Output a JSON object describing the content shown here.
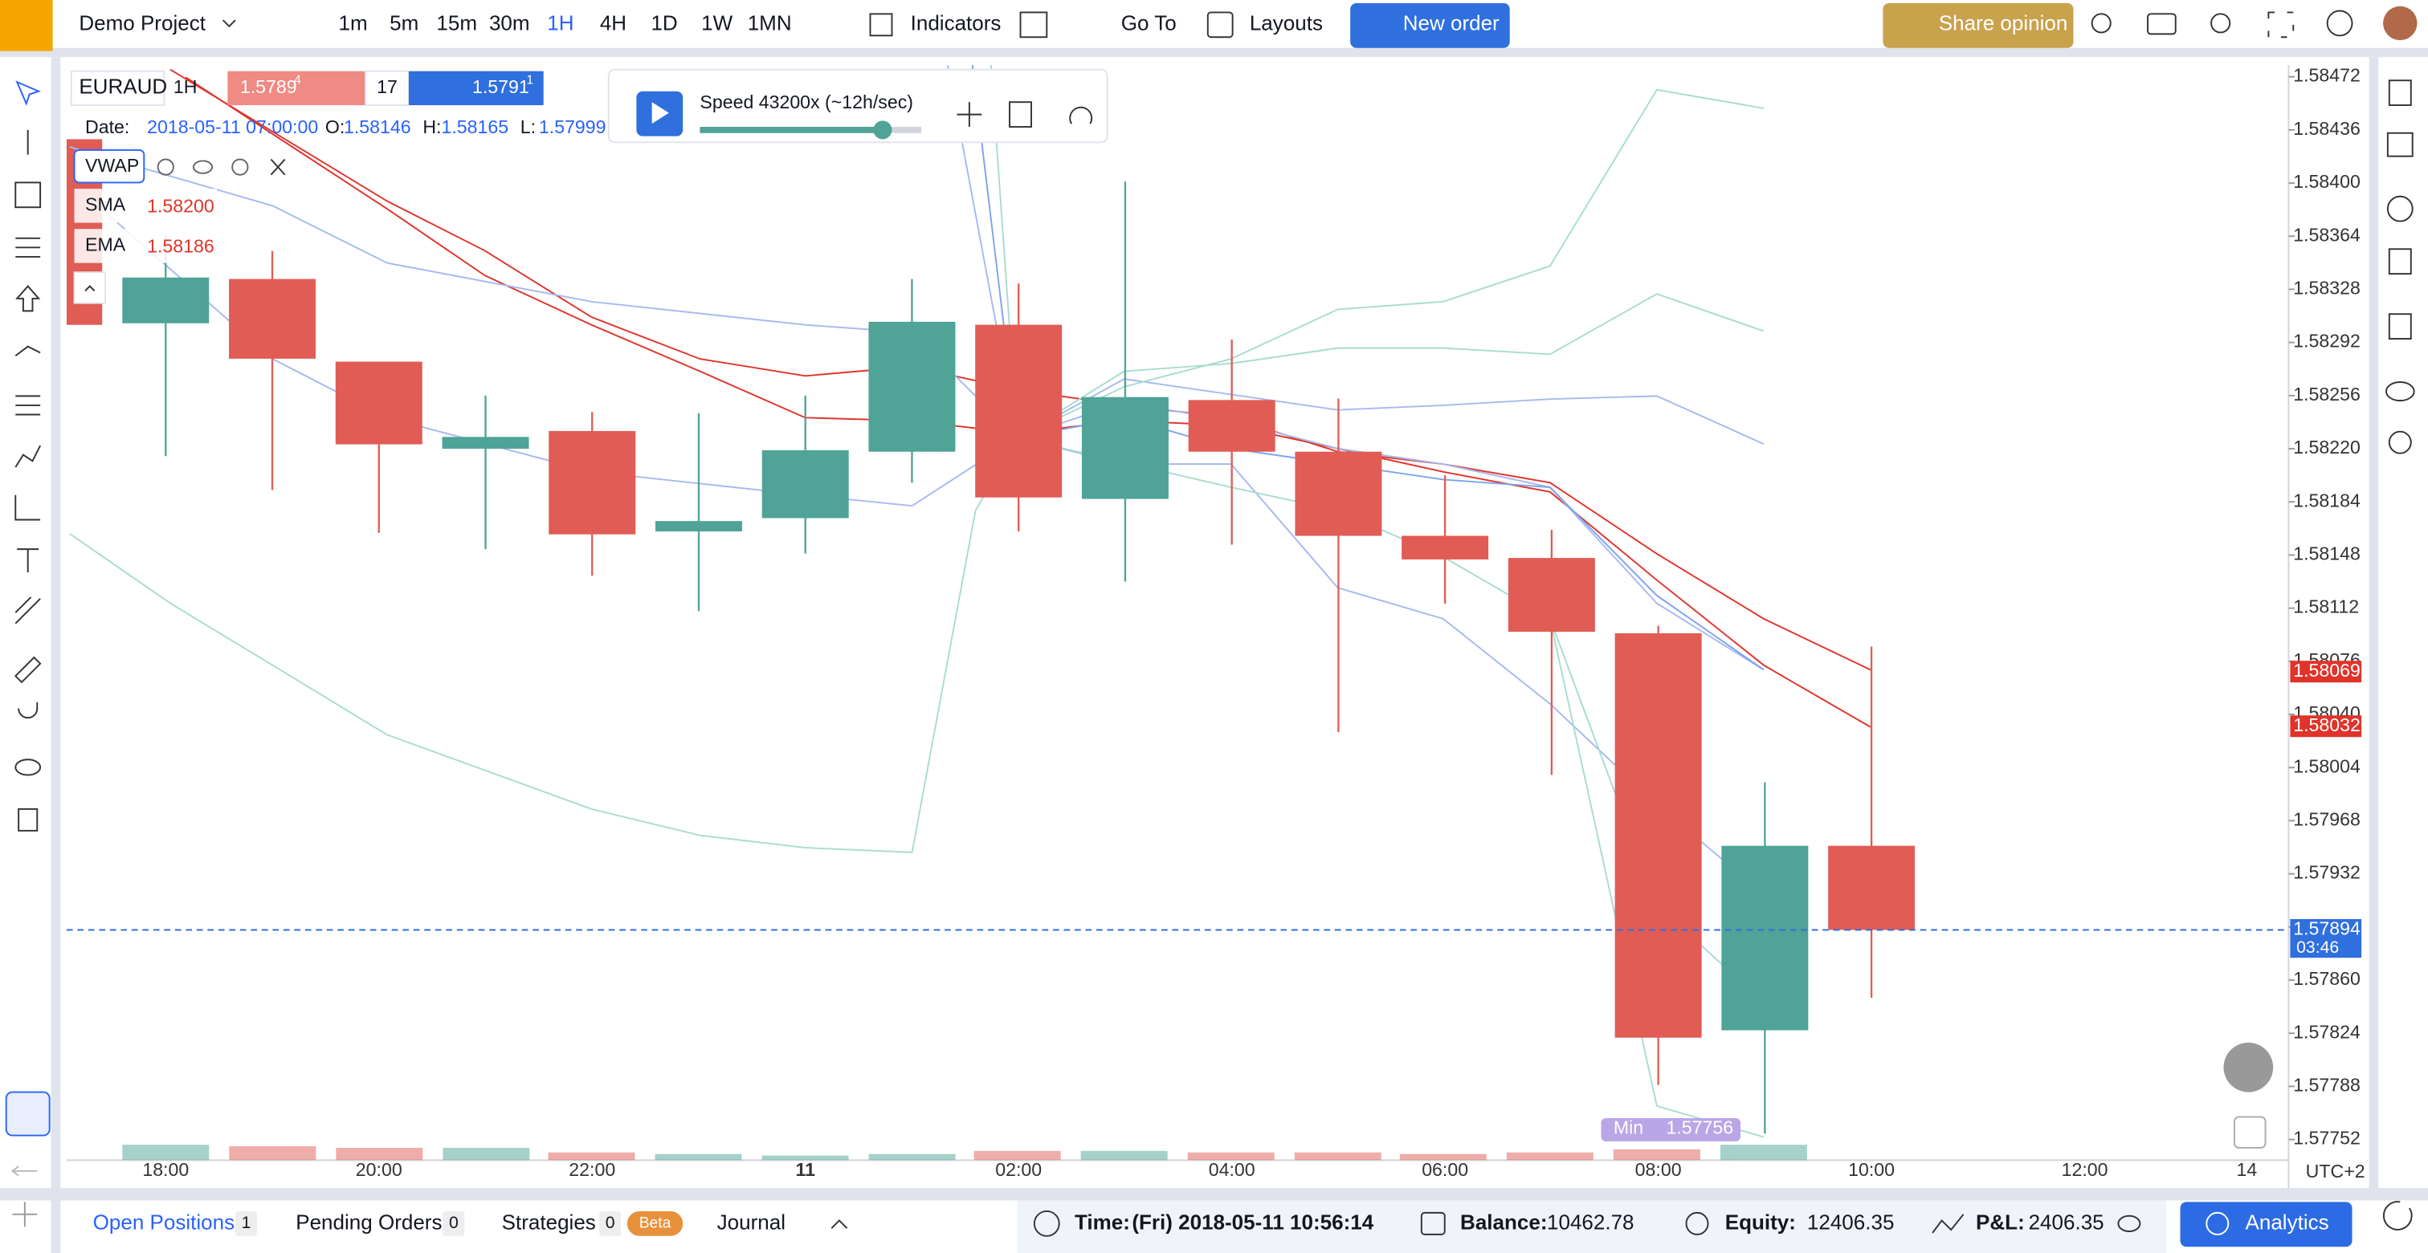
{
  "toolbar": {
    "project": "Demo Project",
    "timeframes": [
      "1m",
      "5m",
      "15m",
      "30m",
      "1H",
      "4H",
      "1D",
      "1W",
      "1MN"
    ],
    "indicators": "Indicators",
    "goto": "Go To",
    "layouts": "Layouts",
    "new_order": "New order",
    "share": "Share opinion"
  },
  "legend": {
    "symbol": "EURAUD",
    "interval": "1H",
    "sell": "1.5789",
    "sell_sup": "4",
    "spread": "17",
    "buy": "1.5791",
    "buy_sup": "1",
    "date_label": "Date:",
    "date": "2018-05-11 07:00:00",
    "o_label": "O:",
    "o": "1.58146",
    "h_label": "H:",
    "h": "1.58165",
    "l_label": "L:",
    "l": "1.57999",
    "vwap": "VWAP",
    "sma": "SMA",
    "sma_value": "1.58200",
    "ema": "EMA",
    "ema_value": "1.58186"
  },
  "replay": {
    "speed": "Speed 43200x (~12h/sec)"
  },
  "chart": {
    "ylim": [
      1.57738,
      1.5848
    ],
    "yticks": [
      1.58472,
      1.58436,
      {
        "value": 1.584,
        "label": "1.58400"
      },
      1.58364,
      1.58328,
      1.58292,
      1.58256,
      {
        "value": 1.5822,
        "label": "1.58220"
      },
      1.58184,
      1.58148,
      1.58112,
      1.58076,
      {
        "value": 1.5804,
        "label": "1.58040"
      },
      1.58004,
      1.57968,
      1.57932,
      1.57896,
      {
        "value": 1.5786,
        "label": "1.57860"
      },
      1.57824,
      1.57788,
      1.57752
    ],
    "categories": [
      "18:00",
      null,
      "20:00",
      null,
      "22:00",
      null,
      "11",
      null,
      "02:00",
      null,
      "04:00",
      null,
      "06:00",
      null,
      "08:00",
      null,
      "10:00",
      null,
      "12:00",
      null,
      "14"
    ],
    "up_color": "#4fa397",
    "down_color": "#e05c55",
    "candles": [
      {
        "open": 1.58305,
        "high": 1.58365,
        "low": 1.58215,
        "close": 1.58336
      },
      {
        "open": 1.58335,
        "high": 1.58354,
        "low": 1.58192,
        "close": 1.58281
      },
      {
        "open": 1.58279,
        "high": 1.58279,
        "low": 1.58163,
        "close": 1.58223
      },
      {
        "open": 1.5822,
        "high": 1.58256,
        "low": 1.58152,
        "close": 1.58228
      },
      {
        "open": 1.58232,
        "high": 1.58245,
        "low": 1.58134,
        "close": 1.58162
      },
      {
        "open": 1.58164,
        "high": 1.58244,
        "low": 1.5811,
        "close": 1.58171
      },
      {
        "open": 1.58173,
        "high": 1.58256,
        "low": 1.58149,
        "close": 1.58219
      },
      {
        "open": 1.58218,
        "high": 1.58335,
        "low": 1.58197,
        "close": 1.58306
      },
      {
        "open": 1.58304,
        "high": 1.58332,
        "low": 1.58164,
        "close": 1.58187
      },
      {
        "open": 1.58186,
        "high": 1.58401,
        "low": 1.5813,
        "close": 1.58255
      },
      {
        "open": 1.58253,
        "high": 1.58294,
        "low": 1.58155,
        "close": 1.58218
      },
      {
        "open": 1.58218,
        "high": 1.58254,
        "low": 1.58028,
        "close": 1.58161
      },
      {
        "open": 1.58161,
        "high": 1.58202,
        "low": 1.58115,
        "close": 1.58145
      },
      {
        "open": 1.58146,
        "high": 1.58165,
        "low": 1.57999,
        "close": 1.58096
      },
      {
        "open": 1.58095,
        "high": 1.581,
        "low": 1.57789,
        "close": 1.57821
      },
      {
        "open": 1.57826,
        "high": 1.57994,
        "low": 1.57756,
        "close": 1.57951
      },
      {
        "open": 1.57951,
        "high": 1.58086,
        "low": 1.57848,
        "close": 1.57894
      }
    ],
    "sma_tag": 1.58069,
    "ema_tag": 1.58032,
    "current_price": 1.57894,
    "countdown": "03:46",
    "min_label": "Min",
    "min_value": 1.57756,
    "timezone": "UTC+2"
  },
  "bottom": {
    "open_positions": "Open Positions",
    "open_count": "1",
    "pending": "Pending Orders",
    "pending_count": "0",
    "strategies": "Strategies",
    "strategies_count": "0",
    "beta": "Beta",
    "journal": "Journal",
    "time_label": "Time:",
    "time": "(Fri) 2018-05-11 10:56:14",
    "balance_label": "Balance:",
    "balance": "10462.78",
    "equity_label": "Equity:",
    "equity": "12406.35",
    "pnl_label": "P&L:",
    "pnl": "2406.35",
    "analytics": "Analytics"
  }
}
